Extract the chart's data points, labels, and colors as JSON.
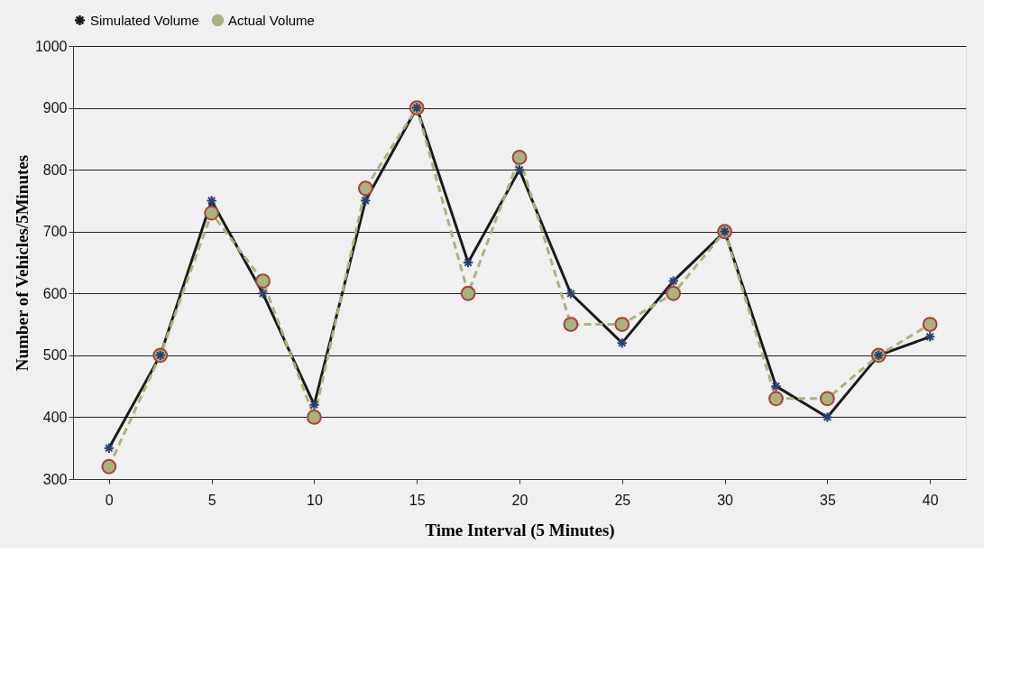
{
  "chart_data": {
    "type": "line",
    "xlabel": "Time Interval (5 Minutes)",
    "ylabel": "Number of Vehicles/5Minutes",
    "x": [
      0,
      2.5,
      5,
      7.5,
      10,
      12.5,
      15,
      17.5,
      20,
      22.5,
      25,
      27.5,
      30,
      32.5,
      35,
      37.5,
      40
    ],
    "series": [
      {
        "name": "Simulated Volume",
        "color": "#1a1a1a",
        "marker": "cross",
        "line_style": "solid",
        "values": [
          350,
          500,
          750,
          600,
          420,
          750,
          900,
          650,
          800,
          600,
          520,
          620,
          700,
          450,
          400,
          500,
          530
        ]
      },
      {
        "name": "Actual Volume",
        "color": "#a8b47c",
        "marker": "circle",
        "line_style": "dashed",
        "values": [
          320,
          500,
          730,
          620,
          400,
          770,
          900,
          600,
          820,
          550,
          550,
          600,
          700,
          430,
          430,
          500,
          550
        ]
      }
    ],
    "xlim": [
      -1.75,
      41.75
    ],
    "xticks": [
      0,
      5,
      10,
      15,
      20,
      25,
      30,
      35,
      40
    ],
    "ylim": [
      300,
      1000
    ],
    "yticks": [
      300,
      400,
      500,
      600,
      700,
      800,
      900,
      1000
    ],
    "grid": "y",
    "legend": "top"
  }
}
